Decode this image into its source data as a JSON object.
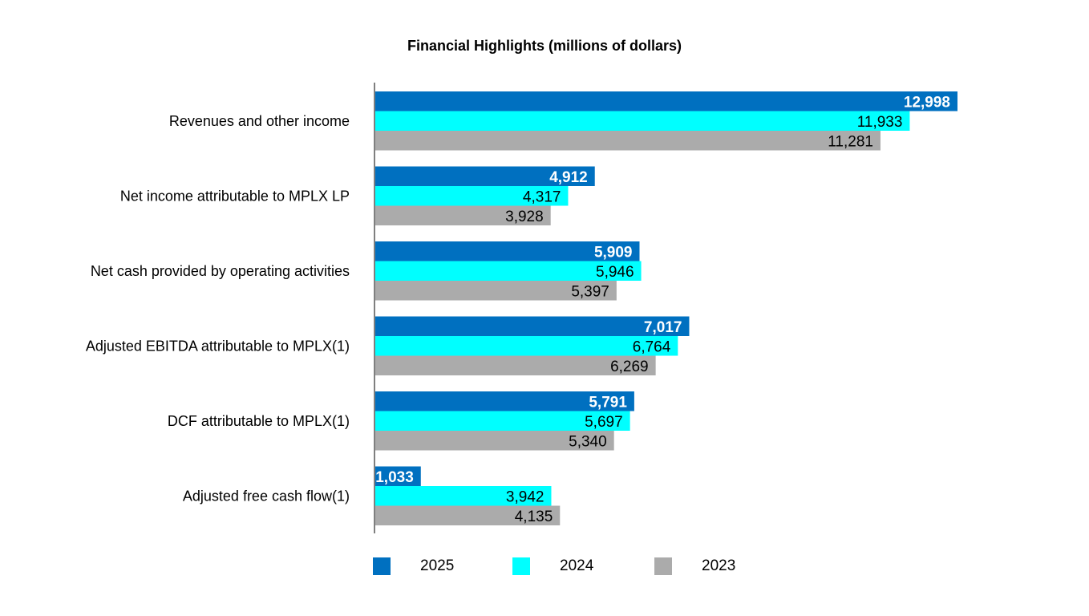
{
  "chart_data": {
    "type": "bar",
    "orientation": "horizontal",
    "title": "Financial Highlights (millions of dollars)",
    "categories": [
      "Revenues and other income",
      "Net income attributable to MPLX LP",
      "Net cash provided by operating activities",
      "Adjusted EBITDA attributable to MPLX(1)",
      "DCF attributable to MPLX(1)",
      "Adjusted free cash flow(1)"
    ],
    "series": [
      {
        "name": "2025",
        "color": "#0070C0",
        "values": [
          12998,
          4912,
          5909,
          7017,
          5791,
          1033
        ],
        "labels": [
          "12,998",
          "4,912",
          "5,909",
          "7,017",
          "5,791",
          "1,033"
        ]
      },
      {
        "name": "2024",
        "color": "#00FFFF",
        "values": [
          11933,
          4317,
          5946,
          6764,
          5697,
          3942
        ],
        "labels": [
          "11,933",
          "4,317",
          "5,946",
          "6,764",
          "5,697",
          "3,942"
        ]
      },
      {
        "name": "2023",
        "color": "#ABABAB",
        "values": [
          11281,
          3928,
          5397,
          6269,
          5340,
          4135
        ],
        "labels": [
          "11,281",
          "3,928",
          "5,397",
          "6,269",
          "5,340",
          "4,135"
        ]
      }
    ],
    "xlim": [
      0,
      13000
    ],
    "grid": false,
    "legend_position": "bottom"
  }
}
